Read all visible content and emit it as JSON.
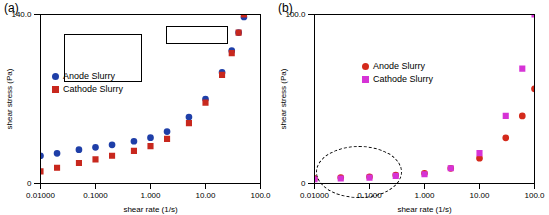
{
  "chart_data": [
    {
      "type": "scatter",
      "title": "(a)",
      "x_label": "shear rate (1/s)",
      "y_label": "shear stress (Pa)",
      "log": "x",
      "legend": "center-left",
      "xlim": [
        0.01,
        100
      ],
      "ylim": [
        0,
        140
      ],
      "xticks": [
        {
          "value": 0.01,
          "label": "0.01000"
        },
        {
          "value": 0.1,
          "label": "0.1000"
        },
        {
          "value": 1,
          "label": "1.000"
        },
        {
          "value": 10,
          "label": "10.00"
        },
        {
          "value": 100,
          "label": "100.0"
        }
      ],
      "yticks": [
        0,
        {
          "value": 140,
          "label": "140.0"
        }
      ],
      "x": [
        0.01,
        0.02,
        0.05,
        0.1,
        0.2,
        0.5,
        1,
        2,
        5,
        10,
        20,
        30,
        40,
        50
      ],
      "series": [
        {
          "name": "Anode  Slurry",
          "color": "#1f3fa8",
          "marker": "circle",
          "values": [
            23,
            25,
            28,
            30,
            32,
            35,
            38,
            43,
            55,
            70,
            92,
            110,
            125,
            138
          ]
        },
        {
          "name": "Cathode  Slurry",
          "color": "#c8281e",
          "marker": "square",
          "values": [
            10,
            13,
            17,
            20,
            23,
            27,
            31,
            37,
            50,
            67,
            90,
            108,
            125,
            140
          ]
        }
      ]
    },
    {
      "type": "scatter",
      "title": "(b)",
      "x_label": "shear rate (1/s)",
      "y_label": "shear stress (Pa)",
      "log": "x",
      "legend": "top-center",
      "xlim": [
        0.01,
        100
      ],
      "ylim": [
        0,
        100
      ],
      "xticks": [
        {
          "value": 0.01,
          "label": "0.01000"
        },
        {
          "value": 0.1,
          "label": "0.1000"
        },
        {
          "value": 1,
          "label": "1.000"
        },
        {
          "value": 10,
          "label": "10.00"
        },
        {
          "value": 100,
          "label": "100.0"
        }
      ],
      "yticks": [
        0,
        {
          "value": 100,
          "label": "100.0"
        }
      ],
      "x": [
        0.01,
        0.03,
        0.1,
        0.3,
        1,
        3,
        10,
        30,
        60,
        100
      ],
      "series": [
        {
          "name": "Anode Slurry",
          "color": "#d42a1c",
          "marker": "circle",
          "values": [
            3,
            3.5,
            4,
            5,
            6,
            9,
            15,
            27,
            40,
            56
          ]
        },
        {
          "name": "Cathode Slurry",
          "color": "#d633d6",
          "marker": "square",
          "values": [
            2.5,
            3,
            3.5,
            4.5,
            5.5,
            9,
            18,
            40,
            68,
            100
          ]
        }
      ]
    }
  ]
}
